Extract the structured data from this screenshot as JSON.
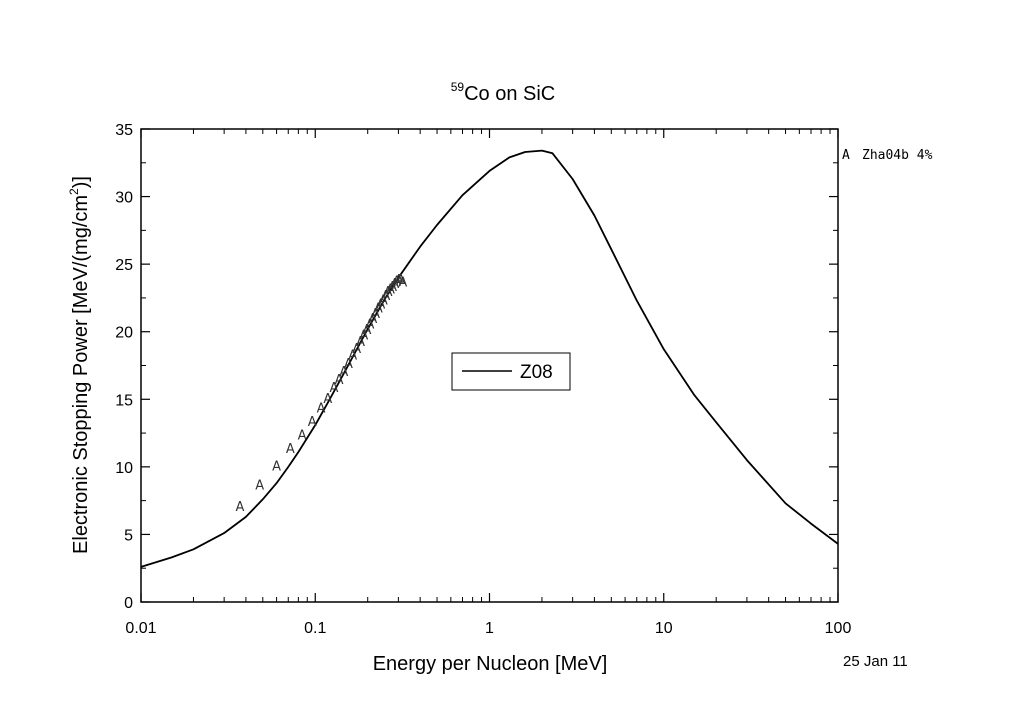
{
  "chart_data": {
    "type": "line",
    "title": {
      "superscript": "59",
      "text": "Co on SiC"
    },
    "xlabel": "Energy per Nucleon [MeV]",
    "ylabel": {
      "before": "Electronic Stopping Power [MeV/(mg/cm",
      "superscript": "2",
      "after": ")]"
    },
    "x_scale": "log",
    "xlim": [
      0.01,
      100
    ],
    "ylim": [
      0,
      35
    ],
    "x_ticks": [
      {
        "value": 0.01,
        "label": "0.01"
      },
      {
        "value": 0.1,
        "label": "0.1"
      },
      {
        "value": 1,
        "label": "1"
      },
      {
        "value": 10,
        "label": "10"
      },
      {
        "value": 100,
        "label": "100"
      }
    ],
    "y_ticks": [
      0,
      5,
      10,
      15,
      20,
      25,
      30,
      35
    ],
    "grid": false,
    "legend": {
      "placement": "center",
      "entries": [
        "Z08"
      ]
    },
    "series": [
      {
        "name": "Z08",
        "style": "line",
        "x": [
          0.01,
          0.015,
          0.02,
          0.03,
          0.04,
          0.05,
          0.06,
          0.07,
          0.08,
          0.1,
          0.12,
          0.15,
          0.2,
          0.25,
          0.3,
          0.4,
          0.5,
          0.7,
          1.0,
          1.3,
          1.6,
          2.0,
          2.3,
          3.0,
          4.0,
          5.0,
          7.0,
          10,
          15,
          20,
          30,
          50,
          70,
          100
        ],
        "y": [
          2.6,
          3.3,
          3.9,
          5.1,
          6.3,
          7.6,
          8.8,
          10.0,
          11.1,
          13.1,
          14.9,
          17.2,
          20.2,
          22.4,
          24.0,
          26.3,
          27.9,
          30.1,
          31.9,
          32.9,
          33.3,
          33.4,
          33.2,
          31.3,
          28.6,
          26.1,
          22.3,
          18.7,
          15.3,
          13.3,
          10.5,
          7.3,
          5.8,
          4.3
        ]
      },
      {
        "name": "Zha04b 4%",
        "style": "marker",
        "marker": "A",
        "x": [
          0.037,
          0.048,
          0.06,
          0.072,
          0.084,
          0.096,
          0.108,
          0.118,
          0.128,
          0.137,
          0.146,
          0.155,
          0.164,
          0.173,
          0.182,
          0.19,
          0.198,
          0.206,
          0.214,
          0.222,
          0.23,
          0.238,
          0.246,
          0.254,
          0.262,
          0.27,
          0.278,
          0.286,
          0.294,
          0.302,
          0.31,
          0.318
        ],
        "y": [
          7.1,
          8.7,
          10.1,
          11.4,
          12.4,
          13.4,
          14.4,
          15.1,
          15.9,
          16.5,
          17.1,
          17.7,
          18.3,
          18.8,
          19.3,
          19.8,
          20.2,
          20.6,
          21.0,
          21.4,
          21.8,
          22.1,
          22.4,
          22.7,
          23.0,
          23.2,
          23.4,
          23.6,
          23.8,
          23.9,
          23.9,
          23.7
        ]
      }
    ],
    "side_legend": {
      "marker": "A",
      "text": "Zha04b 4%"
    },
    "date_stamp": "25 Jan 11"
  }
}
